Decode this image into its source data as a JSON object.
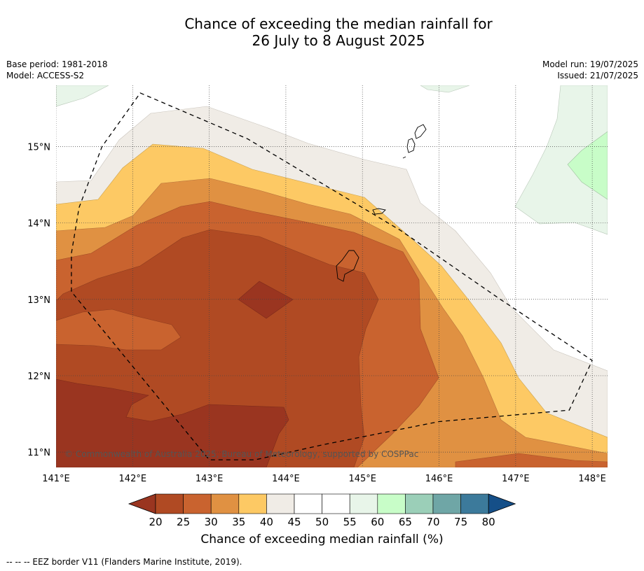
{
  "title_line1": "Chance of exceeding the median rainfall for",
  "title_line2": "26 July to 8 August 2025",
  "meta": {
    "base_period": "Base period: 1981-2018",
    "model": "Model: ACCESS-S2",
    "model_run": "Model run: 19/07/2025",
    "issued": "Issued: 21/07/2025"
  },
  "map": {
    "lon_range": [
      141,
      148.2
    ],
    "lat_range": [
      10.8,
      15.8
    ],
    "lon_ticks": [
      141,
      142,
      143,
      144,
      145,
      146,
      147,
      148
    ],
    "lon_labels": [
      "141°E",
      "142°E",
      "143°E",
      "144°E",
      "145°E",
      "146°E",
      "147°E",
      "148°E"
    ],
    "lat_ticks": [
      11,
      12,
      13,
      14,
      15
    ],
    "lat_labels": [
      "11°N",
      "12°N",
      "13°N",
      "14°N",
      "15°N"
    ],
    "grid": true,
    "copyright": "© Commonwealth of Australia 2025, Bureau of Meteorology, supported by COSPPac",
    "eez_border": [
      [
        141.2,
        13.1
      ],
      [
        141.2,
        13.6
      ],
      [
        141.3,
        14.2
      ],
      [
        141.6,
        15.0
      ],
      [
        142.1,
        15.7
      ],
      [
        143.5,
        15.1
      ],
      [
        144.5,
        14.5
      ],
      [
        145.5,
        13.9
      ],
      [
        146.8,
        13.0
      ],
      [
        148.0,
        12.2
      ],
      [
        147.7,
        11.55
      ],
      [
        146.0,
        11.4
      ],
      [
        144.5,
        11.1
      ],
      [
        143.6,
        10.9
      ],
      [
        143.0,
        10.9
      ],
      [
        141.2,
        13.1
      ]
    ]
  },
  "colorbar": {
    "levels": [
      "20",
      "25",
      "30",
      "35",
      "40",
      "45",
      "50",
      "55",
      "60",
      "65",
      "70",
      "75",
      "80"
    ],
    "colors": [
      "#9a3520",
      "#b04a23",
      "#c9632f",
      "#e09142",
      "#fdc964",
      "#f0ece6",
      "#ffffff",
      "#ffffff",
      "#e8f5e9",
      "#c8fdc8",
      "#9bcfb8",
      "#6fa6a6",
      "#3c7a9b",
      "#154f88"
    ],
    "label": "Chance of exceeding median rainfall (%)"
  },
  "footer": "--  --  -- EEZ border V11 (Flanders Marine Institute, 2019)."
}
